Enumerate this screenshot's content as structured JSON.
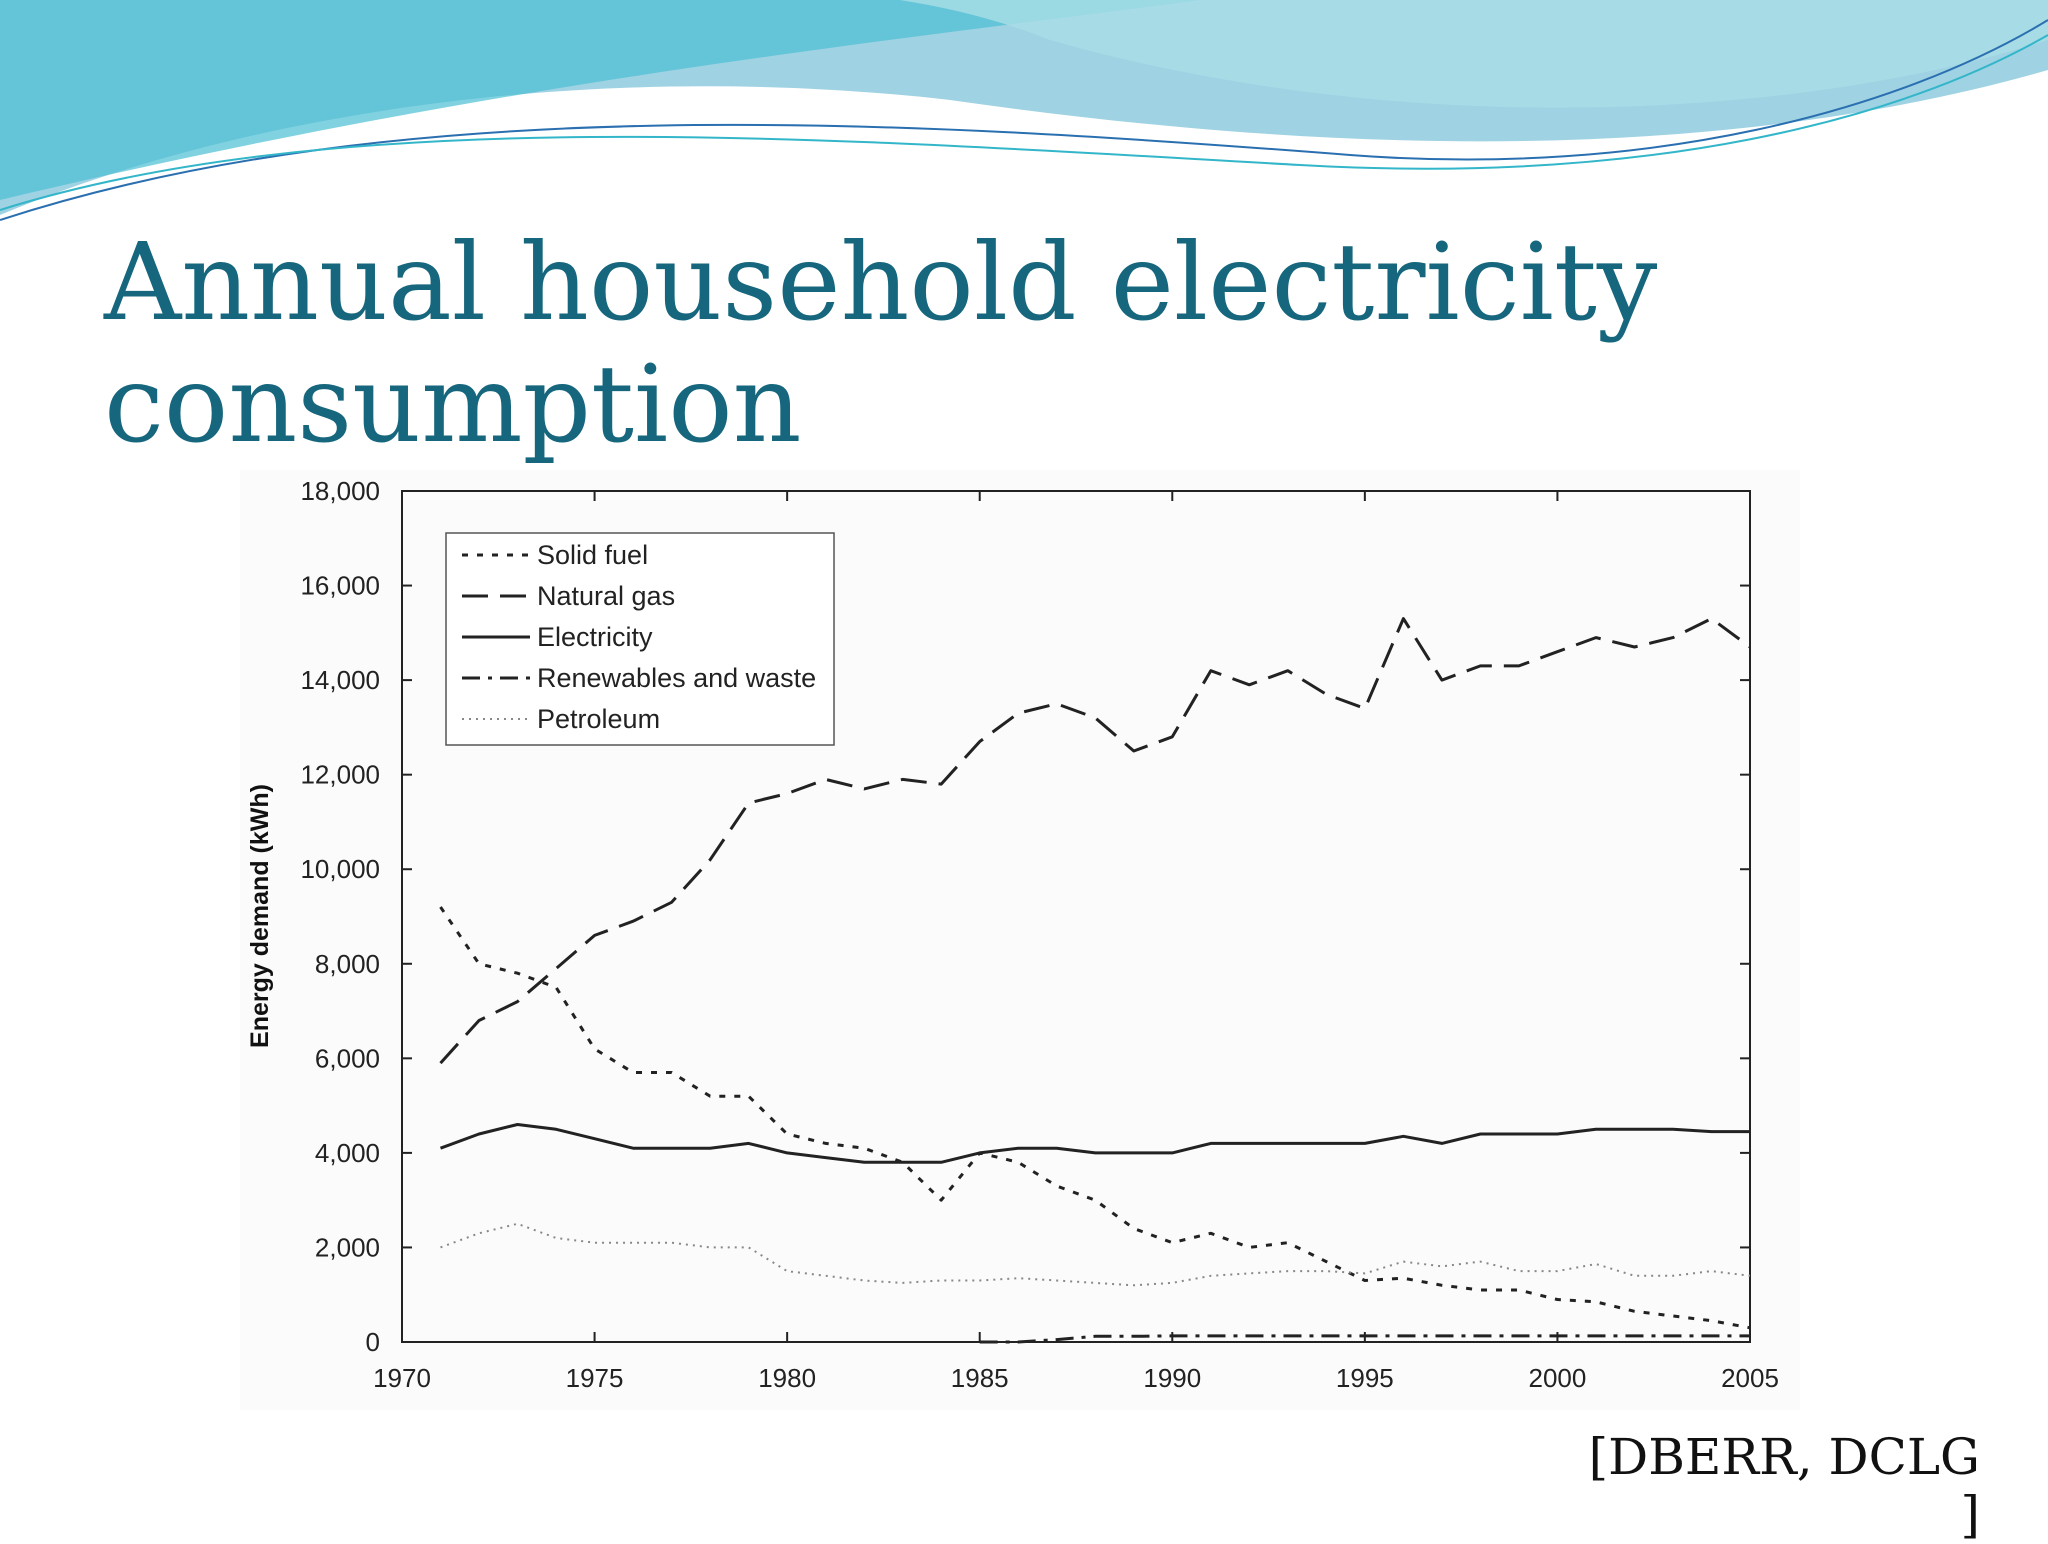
{
  "slide": {
    "title_line1": "Annual household electricity",
    "title_line2": "consumption",
    "source": "[DBERR, DCLG ]",
    "accent_color": "#16677d",
    "banner_colors": [
      "#5fc9d8",
      "#8fc6dc",
      "#2a6fb0"
    ]
  },
  "chart_data": {
    "type": "line",
    "title": "",
    "xlabel": "",
    "ylabel": "Energy demand (kWh)",
    "xlim": [
      1970,
      2005
    ],
    "ylim": [
      0,
      18000
    ],
    "x_ticks": [
      "1970",
      "1975",
      "1980",
      "1985",
      "1990",
      "1995",
      "2000",
      "2005"
    ],
    "y_ticks": [
      "0",
      "2,000",
      "4,000",
      "6,000",
      "8,000",
      "10,000",
      "12,000",
      "14,000",
      "16,000",
      "18,000"
    ],
    "grid": false,
    "legend_position": "top-left",
    "series": [
      {
        "name": "Solid fuel",
        "style": "short-dash",
        "color": "#222222",
        "x": [
          1971,
          1972,
          1973,
          1974,
          1975,
          1976,
          1977,
          1978,
          1979,
          1980,
          1981,
          1982,
          1983,
          1984,
          1985,
          1986,
          1987,
          1988,
          1989,
          1990,
          1991,
          1992,
          1993,
          1994,
          1995,
          1996,
          1997,
          1998,
          1999,
          2000,
          2001,
          2002,
          2003,
          2004,
          2005
        ],
        "y": [
          9200,
          8000,
          7800,
          7500,
          6200,
          5700,
          5700,
          5200,
          5200,
          4400,
          4200,
          4100,
          3800,
          3000,
          4000,
          3800,
          3300,
          3000,
          2400,
          2100,
          2300,
          2000,
          2100,
          1700,
          1300,
          1350,
          1200,
          1100,
          1100,
          900,
          850,
          650,
          550,
          450,
          300
        ]
      },
      {
        "name": "Natural gas",
        "style": "long-dash",
        "color": "#222222",
        "x": [
          1971,
          1972,
          1973,
          1974,
          1975,
          1976,
          1977,
          1978,
          1979,
          1980,
          1981,
          1982,
          1983,
          1984,
          1985,
          1986,
          1987,
          1988,
          1989,
          1990,
          1991,
          1992,
          1993,
          1994,
          1995,
          1996,
          1997,
          1998,
          1999,
          2000,
          2001,
          2002,
          2003,
          2004,
          2005
        ],
        "y": [
          5900,
          6800,
          7200,
          7900,
          8600,
          8900,
          9300,
          10200,
          11400,
          11600,
          11900,
          11700,
          11900,
          11800,
          12700,
          13300,
          13500,
          13200,
          12500,
          12800,
          14200,
          13900,
          14200,
          13700,
          13400,
          15300,
          14000,
          14300,
          14300,
          14600,
          14900,
          14700,
          14900,
          15300,
          14700
        ]
      },
      {
        "name": "Electricity",
        "style": "solid",
        "color": "#222222",
        "x": [
          1971,
          1972,
          1973,
          1974,
          1975,
          1976,
          1977,
          1978,
          1979,
          1980,
          1981,
          1982,
          1983,
          1984,
          1985,
          1986,
          1987,
          1988,
          1989,
          1990,
          1991,
          1992,
          1993,
          1994,
          1995,
          1996,
          1997,
          1998,
          1999,
          2000,
          2001,
          2002,
          2003,
          2004,
          2005
        ],
        "y": [
          4100,
          4400,
          4600,
          4500,
          4300,
          4100,
          4100,
          4100,
          4200,
          4000,
          3900,
          3800,
          3800,
          3800,
          4000,
          4100,
          4100,
          4000,
          4000,
          4000,
          4200,
          4200,
          4200,
          4200,
          4200,
          4350,
          4200,
          4400,
          4400,
          4400,
          4500,
          4500,
          4500,
          4450,
          4450
        ]
      },
      {
        "name": "Renewables and waste",
        "style": "dash-dot",
        "color": "#222222",
        "x": [
          1985,
          1986,
          1987,
          1988,
          1989,
          1990,
          1995,
          2000,
          2005
        ],
        "y": [
          0,
          0,
          50,
          120,
          120,
          130,
          130,
          130,
          130
        ]
      },
      {
        "name": "Petroleum",
        "style": "dotted",
        "color": "#888888",
        "x": [
          1971,
          1972,
          1973,
          1974,
          1975,
          1976,
          1977,
          1978,
          1979,
          1980,
          1981,
          1982,
          1983,
          1984,
          1985,
          1986,
          1987,
          1988,
          1989,
          1990,
          1991,
          1992,
          1993,
          1994,
          1995,
          1996,
          1997,
          1998,
          1999,
          2000,
          2001,
          2002,
          2003,
          2004,
          2005
        ],
        "y": [
          2000,
          2300,
          2500,
          2200,
          2100,
          2100,
          2100,
          2000,
          2000,
          1500,
          1400,
          1300,
          1250,
          1300,
          1300,
          1350,
          1300,
          1250,
          1200,
          1250,
          1400,
          1450,
          1500,
          1500,
          1450,
          1700,
          1600,
          1700,
          1500,
          1500,
          1650,
          1400,
          1400,
          1500,
          1400
        ]
      }
    ]
  }
}
